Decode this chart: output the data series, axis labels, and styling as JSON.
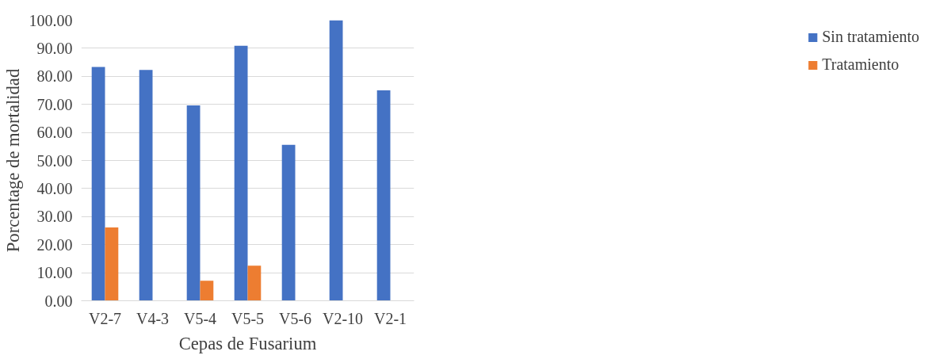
{
  "chart_data": {
    "type": "bar",
    "xlabel": "Cepas de Fusarium",
    "ylabel": "Porcentage de mortalidad",
    "categories": [
      "V2-7",
      "V4-3",
      "V5-4",
      "V5-5",
      "V5-6",
      "V2-10",
      "V2-1"
    ],
    "series": [
      {
        "name": "Sin tratamiento",
        "color": "#4472c4",
        "values": [
          83.3,
          82.3,
          69.6,
          90.9,
          55.6,
          100,
          75
        ]
      },
      {
        "name": "Tratamiento",
        "color": "#ed7d31",
        "values": [
          26.1,
          0,
          7.1,
          12.5,
          0,
          0,
          0
        ]
      }
    ],
    "ylim": [
      0,
      100
    ],
    "yticks": [
      {
        "value": 0,
        "label": "0.00"
      },
      {
        "value": 10,
        "label": "10.00"
      },
      {
        "value": 20,
        "label": "20.00"
      },
      {
        "value": 30,
        "label": "30.00"
      },
      {
        "value": 40,
        "label": "40.00"
      },
      {
        "value": 50,
        "label": "50.00"
      },
      {
        "value": 60,
        "label": "60.00"
      },
      {
        "value": 70,
        "label": "70.00"
      },
      {
        "value": 80,
        "label": "80.00"
      },
      {
        "value": 90,
        "label": "90.00"
      },
      {
        "value": 100,
        "label": "100.00"
      }
    ],
    "grid": "y",
    "legend": "right"
  }
}
